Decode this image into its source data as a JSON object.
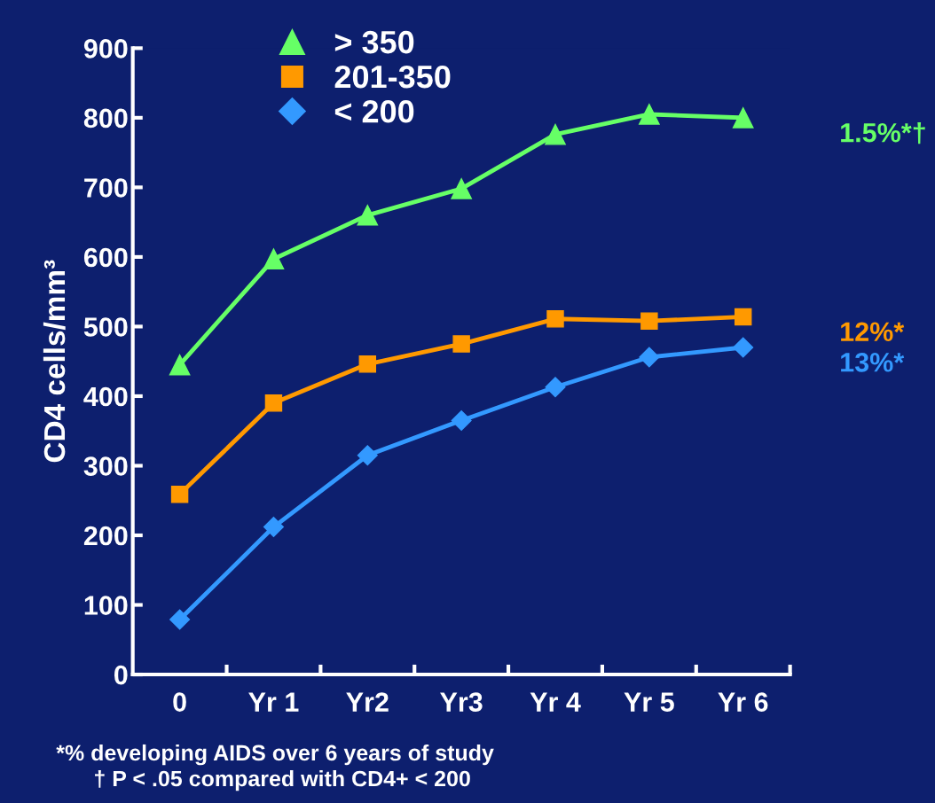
{
  "chart_data": {
    "type": "line",
    "ylabel": "CD4 cells/mm³",
    "categories": [
      "0",
      "Yr 1",
      "Yr2",
      "Yr3",
      "Yr 4",
      "Yr 5",
      "Yr 6"
    ],
    "ylim": [
      0,
      900
    ],
    "yticks": [
      0,
      100,
      200,
      300,
      400,
      500,
      600,
      700,
      800,
      900
    ],
    "grid": false,
    "legend": "top left",
    "line_style": "solid",
    "series": [
      {
        "name": "> 350",
        "color": "#66ff66",
        "marker": "triangle",
        "values": [
          445,
          597,
          660,
          698,
          776,
          805,
          800
        ]
      },
      {
        "name": "201-350",
        "color": "#ff9900",
        "marker": "square",
        "values": [
          259,
          390,
          446,
          475,
          511,
          508,
          514
        ]
      },
      {
        "name": "< 200",
        "color": "#3399ff",
        "marker": "diamond",
        "values": [
          79,
          212,
          315,
          365,
          413,
          456,
          470
        ]
      }
    ],
    "annotations": [
      "1.5%*†",
      "12%*",
      "13%*",
      "*% developing AIDS over 6 years of study",
      "† P < .05 compared with CD4+ < 200"
    ]
  }
}
